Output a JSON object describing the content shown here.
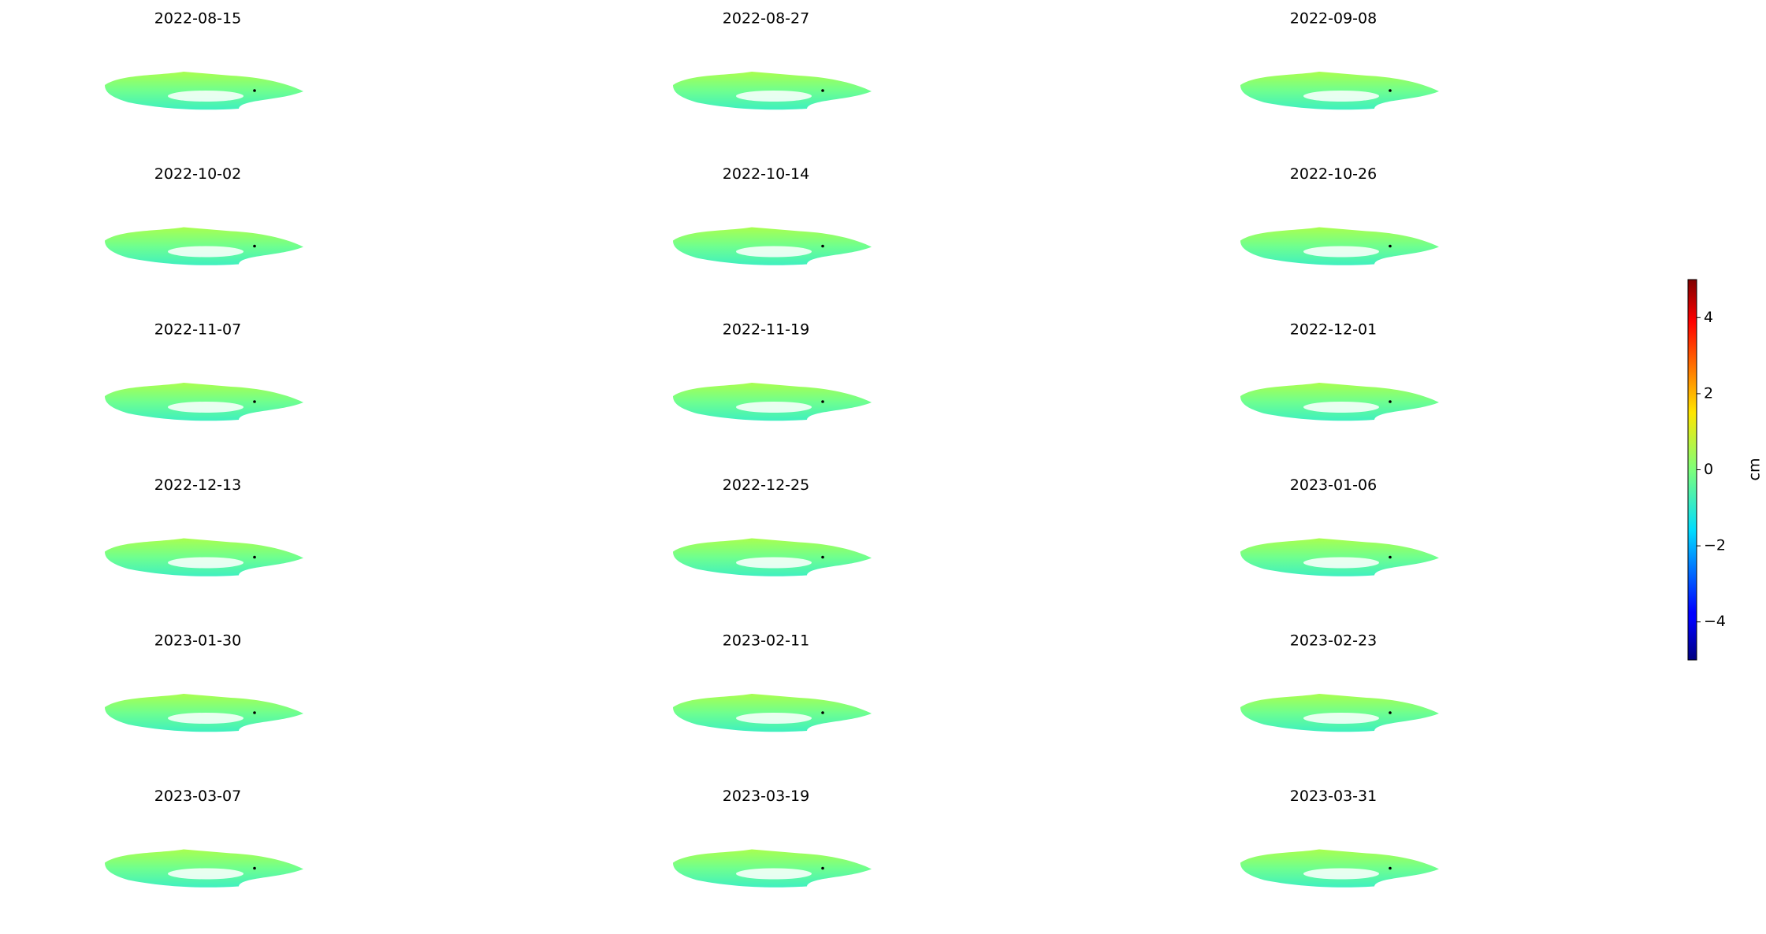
{
  "chart_data": {
    "type": "image_grid",
    "panels": [
      "2022-08-15",
      "2022-08-27",
      "2022-09-08",
      "2022-10-02",
      "2022-10-14",
      "2022-10-26",
      "2022-11-07",
      "2022-11-19",
      "2022-12-01",
      "2022-12-13",
      "2022-12-25",
      "2023-01-06",
      "2023-01-30",
      "2023-02-11",
      "2023-02-23",
      "2023-03-07",
      "2023-03-19",
      "2023-03-31"
    ],
    "colorbar": {
      "label": "cm",
      "colormap": "jet",
      "lim": [
        -5,
        5
      ],
      "ticks": [
        {
          "value": -4,
          "label": "−4"
        },
        {
          "value": -2,
          "label": "−2"
        },
        0,
        2,
        4
      ]
    }
  }
}
